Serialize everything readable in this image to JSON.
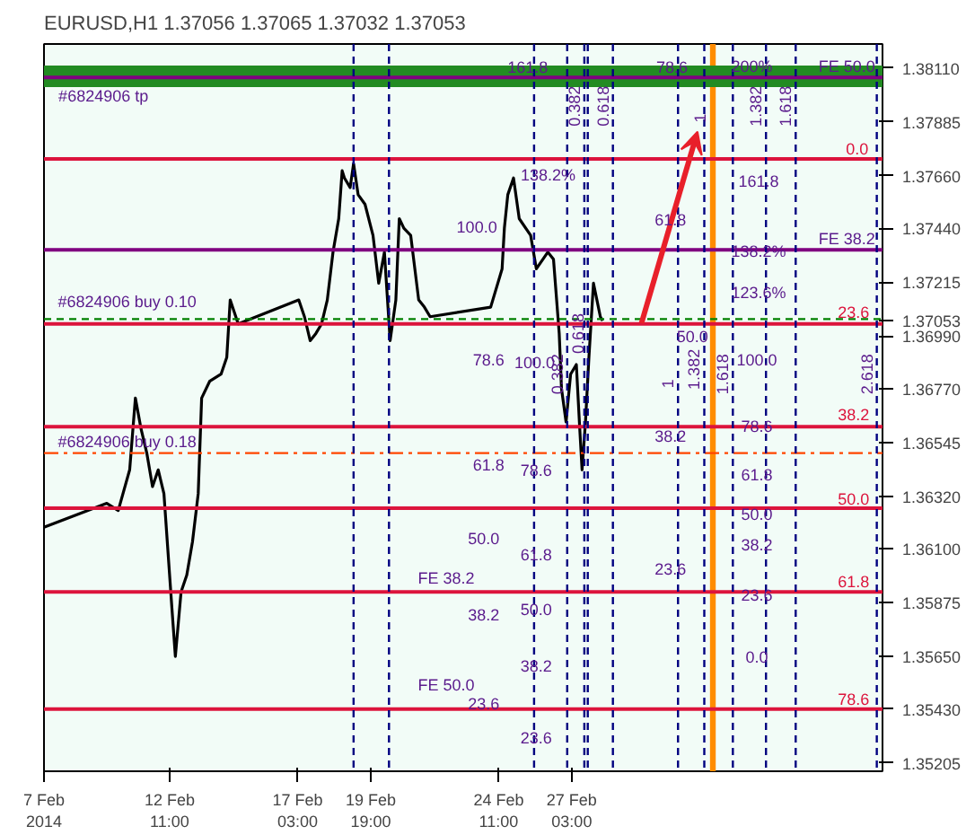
{
  "chart_data": {
    "type": "line",
    "title": "EURUSD,H1  1.37056 1.37065 1.37032 1.37053",
    "series": [
      {
        "color": "#000000",
        "x": [
          "2014-02-07T21:00",
          "2014-02-10T04:00",
          "2014-02-10T14:00",
          "2014-02-11T00:00",
          "2014-02-11T05:00",
          "2014-02-11T10:00",
          "2014-02-11T15:00",
          "2014-02-11T20:00",
          "2014-02-12T01:00",
          "2014-02-12T06:00",
          "2014-02-12T13:00",
          "2014-02-12T16:00",
          "2014-02-12T21:00",
          "2014-02-13T02:00",
          "2014-02-13T07:00",
          "2014-02-13T12:00",
          "2014-02-13T15:00",
          "2014-02-13T22:00",
          "2014-02-14T08:00",
          "2014-02-14T13:00",
          "2014-02-14T16:00",
          "2014-02-14T23:00",
          "2014-02-17T04:00",
          "2014-02-17T09:00",
          "2014-02-17T14:00",
          "2014-02-17T19:00",
          "2014-02-18T00:00",
          "2014-02-18T05:00",
          "2014-02-18T10:00",
          "2014-02-18T15:00",
          "2014-02-18T18:00",
          "2014-02-18T20:00",
          "2014-02-19T01:00",
          "2014-02-19T04:00",
          "2014-02-19T08:00",
          "2014-02-19T14:00",
          "2014-02-19T21:00",
          "2014-02-20T02:00",
          "2014-02-20T07:00",
          "2014-02-20T12:00",
          "2014-02-20T17:00",
          "2014-02-20T20:00",
          "2014-02-21T00:00",
          "2014-02-21T06:00",
          "2014-02-21T13:00",
          "2014-02-21T18:00",
          "2014-02-21T23:00",
          "2014-02-24T04:00",
          "2014-02-24T14:00",
          "2014-02-24T16:00",
          "2014-02-24T19:00",
          "2014-02-25T00:00",
          "2014-02-25T05:00",
          "2014-02-25T15:00",
          "2014-02-25T20:00",
          "2014-02-26T06:00",
          "2014-02-26T11:00",
          "2014-02-26T16:00",
          "2014-02-26T18:00",
          "2014-02-26T22:00",
          "2014-02-27T02:00",
          "2014-02-27T07:00",
          "2014-02-27T10:00",
          "2014-02-27T12:00",
          "2014-02-27T15:00",
          "2014-02-27T18:00",
          "2014-02-27T22:00",
          "2014-02-28T01:00",
          "2014-02-28T04:00",
          "2014-02-28T06:00"
        ],
        "values": [
          1.3619,
          1.3629,
          1.3626,
          1.3643,
          1.3673,
          1.366,
          1.365,
          1.3636,
          1.3643,
          1.3633,
          1.3585,
          1.3565,
          1.3592,
          1.3599,
          1.3613,
          1.3633,
          1.3673,
          1.368,
          1.3683,
          1.369,
          1.3714,
          1.3704,
          1.3714,
          1.3707,
          1.3697,
          1.37,
          1.3704,
          1.3714,
          1.3734,
          1.3748,
          1.3768,
          1.3765,
          1.3761,
          1.3771,
          1.3758,
          1.3754,
          1.3741,
          1.3721,
          1.3734,
          1.3697,
          1.3714,
          1.3748,
          1.3744,
          1.3741,
          1.3714,
          1.3711,
          1.3707,
          1.3711,
          1.3727,
          1.3744,
          1.3758,
          1.3765,
          1.3748,
          1.3741,
          1.3727,
          1.3734,
          1.3731,
          1.37,
          1.3677,
          1.3663,
          1.3683,
          1.3687,
          1.366,
          1.3643,
          1.3663,
          1.369,
          1.3721,
          1.3714,
          1.3707,
          1.37053
        ]
      }
    ],
    "xlim": [
      "2014-02-07T21:00",
      "2014-03-10T11:00"
    ],
    "ylim": [
      1.3517,
      1.3821
    ],
    "xticks": [
      {
        "value": "2014-02-07T21:00",
        "label": "7 Feb 2014"
      },
      {
        "value": "2014-02-12T11:00",
        "label": "12 Feb 11:00"
      },
      {
        "value": "2014-02-17T03:00",
        "label": "17 Feb 03:00"
      },
      {
        "value": "2014-02-19T19:00",
        "label": "19 Feb 19:00"
      },
      {
        "value": "2014-02-24T11:00",
        "label": "24 Feb 11:00"
      },
      {
        "value": "2014-02-27T03:00",
        "label": "27 Feb 03:00"
      }
    ],
    "yticks": [
      {
        "value": 1.3811,
        "label": "1.38110"
      },
      {
        "value": 1.37885,
        "label": "1.37885"
      },
      {
        "value": 1.3766,
        "label": "1.37660"
      },
      {
        "value": 1.3744,
        "label": "1.37440"
      },
      {
        "value": 1.37215,
        "label": "1.37215"
      },
      {
        "value": 1.3699,
        "label": "1.36990"
      },
      {
        "value": 1.3677,
        "label": "1.36770"
      },
      {
        "value": 1.36545,
        "label": "1.36545"
      },
      {
        "value": 1.3632,
        "label": "1.36320"
      },
      {
        "value": 1.361,
        "label": "1.36100"
      },
      {
        "value": 1.35875,
        "label": "1.35875"
      },
      {
        "value": 1.3565,
        "label": "1.35650"
      },
      {
        "value": 1.3543,
        "label": "1.35430"
      },
      {
        "value": 1.35205,
        "label": "1.35205"
      },
      {
        "value": 1.37053,
        "label": "1.37053"
      }
    ],
    "grid": false,
    "line_style": "solid",
    "ref_lines": [
      {
        "axis": "y",
        "value": 1.3773,
        "color": "#dc143c",
        "line_style": "solid"
      },
      {
        "axis": "y",
        "value": 1.3704,
        "color": "#dc143c",
        "line_style": "solid"
      },
      {
        "axis": "y",
        "value": 1.3661,
        "color": "#dc143c",
        "line_style": "solid"
      },
      {
        "axis": "y",
        "value": 1.3627,
        "color": "#dc143c",
        "line_style": "solid"
      },
      {
        "axis": "y",
        "value": 1.3592,
        "color": "#dc143c",
        "line_style": "solid"
      },
      {
        "axis": "y",
        "value": 1.3543,
        "color": "#dc143c",
        "line_style": "solid"
      },
      {
        "axis": "y",
        "value": 1.365,
        "color": "#ff4500",
        "line_style": "dashdot"
      },
      {
        "axis": "y",
        "value": 1.3706,
        "color": "#008000",
        "line_style": "dashed"
      },
      {
        "axis": "y",
        "value": 1.3807,
        "color": "#800080",
        "line_style": "solid"
      },
      {
        "axis": "y",
        "value": 1.3735,
        "color": "#800080",
        "line_style": "solid"
      },
      {
        "axis": "x",
        "value": "2014-02-19T04:00",
        "color": "#000080",
        "line_style": "dashed"
      },
      {
        "axis": "x",
        "value": "2014-02-20T11:00",
        "color": "#000080",
        "line_style": "dashed"
      },
      {
        "axis": "x",
        "value": "2014-02-25T18:00",
        "color": "#000080",
        "line_style": "dashed"
      },
      {
        "axis": "x",
        "value": "2014-02-26T23:00",
        "color": "#000080",
        "line_style": "dashed"
      },
      {
        "axis": "x",
        "value": "2014-02-27T14:00",
        "color": "#000080",
        "line_style": "dashed"
      },
      {
        "axis": "x",
        "value": "2014-02-27T17:00",
        "color": "#000080",
        "line_style": "dashed"
      },
      {
        "axis": "x",
        "value": "2014-02-28T15:00",
        "color": "#000080",
        "line_style": "dashed"
      },
      {
        "axis": "x",
        "value": "2014-03-03T00:00",
        "color": "#000080",
        "line_style": "dashed"
      },
      {
        "axis": "x",
        "value": "2014-03-03T23:00",
        "color": "#000080",
        "line_style": "dashed"
      },
      {
        "axis": "x",
        "value": "2014-03-05T00:00",
        "color": "#000080",
        "line_style": "dashed"
      },
      {
        "axis": "x",
        "value": "2014-03-06T05:00",
        "color": "#000080",
        "line_style": "dashed"
      },
      {
        "axis": "x",
        "value": "2014-03-07T07:00",
        "color": "#000080",
        "line_style": "dashed"
      },
      {
        "axis": "x",
        "value": "2014-03-10T06:00",
        "color": "#000080",
        "line_style": "dashed"
      }
    ],
    "bands": [
      {
        "axis": "x",
        "from": "2014-03-04T04:00",
        "to": "2014-03-04T09:00",
        "color": "#ff8c00"
      },
      {
        "axis": "y",
        "from": 1.3803,
        "to": 1.3812,
        "color": "#228b22"
      }
    ],
    "annotations": [
      {
        "text": "0.382",
        "x": "2014-02-27T14:00",
        "y": 1.3795
      },
      {
        "text": "0.618",
        "x": "2014-02-28T15:00",
        "y": 1.3795
      },
      {
        "text": "1",
        "x": "2014-03-04T04:00",
        "y": 1.379
      },
      {
        "text": "1.382",
        "x": "2014-03-06T05:00",
        "y": 1.3795
      },
      {
        "text": "1.618",
        "x": "2014-03-07T07:00",
        "y": 1.3795
      },
      {
        "text": "0.382",
        "x": "2014-02-26T23:00",
        "y": 1.3683
      },
      {
        "text": "0.618",
        "x": "2014-02-27T17:00",
        "y": 1.37
      },
      {
        "text": "1",
        "x": "2014-03-03T00:00",
        "y": 1.3679
      },
      {
        "text": "1.382",
        "x": "2014-03-03T23:00",
        "y": 1.3685
      },
      {
        "text": "1.618",
        "x": "2014-03-05T00:00",
        "y": 1.3683
      },
      {
        "text": "2.618",
        "x": "2014-03-10T06:00",
        "y": 1.3683
      },
      "#6824906 tp",
      "161.8",
      "78.6",
      "200%",
      "138.2%",
      "161.8",
      "61.8",
      "100.0",
      "138.2%",
      "123.6%",
      "#6824906 buy 0.10",
      "50.0",
      "78.6",
      "100.0",
      "100.0",
      "78.6",
      "38.2",
      "#6824906 buy 0.18",
      "61.8",
      "78.6",
      "61.8",
      "50.0",
      "50.0",
      "38.2",
      "61.8",
      "23.6",
      "FE 38.2",
      "23.6",
      "50.0",
      "38.2",
      "0.0",
      "38.2",
      "FE 50.0",
      "23.6",
      "23.6",
      "FE 50.0",
      "0.0",
      "FE 38.2",
      "23.6",
      "38.2",
      "50.0",
      "61.8",
      "78.6"
    ]
  }
}
